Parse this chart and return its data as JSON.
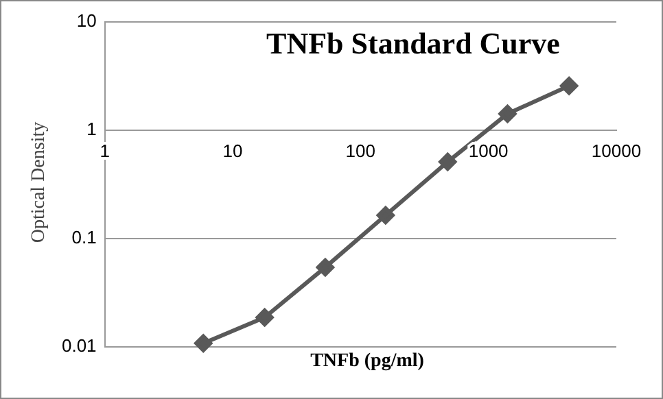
{
  "chart_data": {
    "type": "line",
    "title": "TNFb Standard Curve",
    "xlabel": "TNFb (pg/ml)",
    "ylabel": "Optical Density",
    "x": [
      5.9,
      17.8,
      53,
      157,
      480,
      1410,
      4270
    ],
    "series": [
      {
        "color": "#595959",
        "values": [
          0.0108,
          0.0187,
          0.0543,
          0.164,
          0.511,
          1.42,
          2.57
        ]
      }
    ],
    "log": "xy",
    "xlim": [
      1,
      10000
    ],
    "ylim": [
      0.01,
      10
    ],
    "xticks": [
      1,
      10,
      100,
      1000,
      10000
    ],
    "yticks": [
      0.01,
      0.1,
      1,
      10
    ],
    "grid": "y",
    "legend": false,
    "marker": "diamond",
    "line_style": "solid"
  }
}
